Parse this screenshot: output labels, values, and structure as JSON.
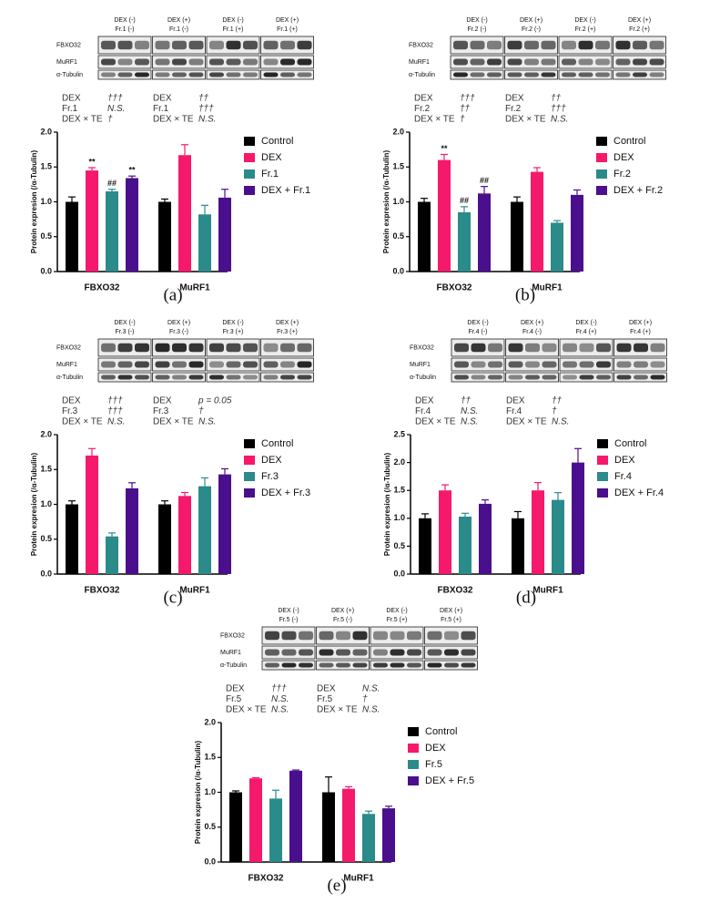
{
  "chart_data": [
    {
      "type": "bar",
      "panel_label": "(a)",
      "lanes": [
        [
          "DEX (-)",
          "Fr.1 (-)"
        ],
        [
          "DEX (+)",
          "Fr.1 (-)"
        ],
        [
          "DEX (-)",
          "Fr.1 (+)"
        ],
        [
          "DEX (+)",
          "Fr.1 (+)"
        ]
      ],
      "blot_rows": [
        "FBXO32",
        "MuRF1",
        "α-Tubulin"
      ],
      "stats": [
        [
          {
            "label": "DEX",
            "value": "†††"
          },
          {
            "label": "Fr.1",
            "value": "N.S."
          },
          {
            "label": "DEX × TE",
            "value": "†"
          }
        ],
        [
          {
            "label": "DEX",
            "value": "††"
          },
          {
            "label": "Fr.1",
            "value": "†††"
          },
          {
            "label": "DEX × TE",
            "value": "N.S."
          }
        ]
      ],
      "y_label": "Protein expresion (/α-Tubulin)",
      "categories": [
        "FBXO32",
        "MuRF1"
      ],
      "series": [
        {
          "name": "Control",
          "color": "#000000",
          "values": [
            1.0,
            1.0
          ],
          "errors": [
            0.07,
            0.04
          ],
          "annotations": [
            null,
            null
          ]
        },
        {
          "name": "DEX",
          "color": "#f5196b",
          "values": [
            1.45,
            1.67
          ],
          "errors": [
            0.04,
            0.15
          ],
          "annotations": [
            "**",
            null
          ]
        },
        {
          "name": "Fr.1",
          "color": "#2b8a8a",
          "values": [
            1.15,
            0.82
          ],
          "errors": [
            0.03,
            0.13
          ],
          "annotations": [
            "##",
            null
          ]
        },
        {
          "name": "DEX + Fr.1",
          "color": "#4a0f8c",
          "values": [
            1.34,
            1.06
          ],
          "errors": [
            0.03,
            0.12
          ],
          "annotations": [
            "**",
            null
          ]
        }
      ],
      "ylim": [
        0,
        2
      ],
      "yticks": [
        {
          "value": 0,
          "label": "0.0"
        },
        0.5,
        {
          "value": 1,
          "label": "1.0"
        },
        1.5,
        {
          "value": 2,
          "label": "2.0"
        }
      ]
    },
    {
      "type": "bar",
      "panel_label": "(b)",
      "lanes": [
        [
          "DEX (-)",
          "Fr.2 (-)"
        ],
        [
          "DEX (+)",
          "Fr.2 (-)"
        ],
        [
          "DEX (-)",
          "Fr.2 (+)"
        ],
        [
          "DEX (+)",
          "Fr.2 (+)"
        ]
      ],
      "blot_rows": [
        "FBXO32",
        "MuRF1",
        "α-Tubulin"
      ],
      "stats": [
        [
          {
            "label": "DEX",
            "value": "†††"
          },
          {
            "label": "Fr.2",
            "value": "††"
          },
          {
            "label": "DEX × TE",
            "value": "†"
          }
        ],
        [
          {
            "label": "DEX",
            "value": "††"
          },
          {
            "label": "Fr.2",
            "value": "†††"
          },
          {
            "label": "DEX × TE",
            "value": "N.S."
          }
        ]
      ],
      "y_label": "Protein expresion (/α-Tubulin)",
      "categories": [
        "FBXO32",
        "MuRF1"
      ],
      "series": [
        {
          "name": "Control",
          "color": "#000000",
          "values": [
            1.0,
            1.0
          ],
          "errors": [
            0.05,
            0.07
          ],
          "annotations": [
            null,
            null
          ]
        },
        {
          "name": "DEX",
          "color": "#f5196b",
          "values": [
            1.6,
            1.43
          ],
          "errors": [
            0.08,
            0.06
          ],
          "annotations": [
            "**",
            null
          ]
        },
        {
          "name": "Fr.2",
          "color": "#2b8a8a",
          "values": [
            0.85,
            0.7
          ],
          "errors": [
            0.08,
            0.03
          ],
          "annotations": [
            "##",
            null
          ]
        },
        {
          "name": "DEX + Fr.2",
          "color": "#4a0f8c",
          "values": [
            1.12,
            1.1
          ],
          "errors": [
            0.1,
            0.07
          ],
          "annotations": [
            "##",
            null
          ]
        }
      ],
      "ylim": [
        0,
        2
      ],
      "yticks": [
        {
          "value": 0,
          "label": "0.0"
        },
        0.5,
        {
          "value": 1,
          "label": "1.0"
        },
        1.5,
        {
          "value": 2,
          "label": "2.0"
        }
      ]
    },
    {
      "type": "bar",
      "panel_label": "(c)",
      "lanes": [
        [
          "DEX (-)",
          "Fr.3 (-)"
        ],
        [
          "DEX (+)",
          "Fr.3 (-)"
        ],
        [
          "DEX (-)",
          "Fr.3 (+)"
        ],
        [
          "DEX (+)",
          "Fr.3 (+)"
        ]
      ],
      "blot_rows": [
        "FBXO32",
        "MuRF1",
        "α-Tubulin"
      ],
      "stats": [
        [
          {
            "label": "DEX",
            "value": "†††"
          },
          {
            "label": "Fr.3",
            "value": "†††"
          },
          {
            "label": "DEX × TE",
            "value": "N.S."
          }
        ],
        [
          {
            "label": "DEX",
            "value": "p = 0.05"
          },
          {
            "label": "Fr.3",
            "value": "†"
          },
          {
            "label": "DEX × TE",
            "value": "N.S."
          }
        ]
      ],
      "y_label": "Protein expresion (/α-Tubulin)",
      "categories": [
        "FBXO32",
        "MuRF1"
      ],
      "series": [
        {
          "name": "Control",
          "color": "#000000",
          "values": [
            1.0,
            1.0
          ],
          "errors": [
            0.05,
            0.05
          ],
          "annotations": [
            null,
            null
          ]
        },
        {
          "name": "DEX",
          "color": "#f5196b",
          "values": [
            1.7,
            1.12
          ],
          "errors": [
            0.1,
            0.05
          ],
          "annotations": [
            null,
            null
          ]
        },
        {
          "name": "Fr.3",
          "color": "#2b8a8a",
          "values": [
            0.54,
            1.26
          ],
          "errors": [
            0.05,
            0.12
          ],
          "annotations": [
            null,
            null
          ]
        },
        {
          "name": "DEX + Fr.3",
          "color": "#4a0f8c",
          "values": [
            1.23,
            1.43
          ],
          "errors": [
            0.08,
            0.08
          ],
          "annotations": [
            null,
            null
          ]
        }
      ],
      "ylim": [
        0,
        2
      ],
      "yticks": [
        {
          "value": 0,
          "label": "0.0"
        },
        0.5,
        {
          "value": 1,
          "label": "1.0"
        },
        1.5,
        {
          "value": 2,
          "label": "2.0"
        }
      ]
    },
    {
      "type": "bar",
      "panel_label": "(d)",
      "lanes": [
        [
          "DEX (-)",
          "Fr.4 (-)"
        ],
        [
          "DEX (+)",
          "Fr.4 (-)"
        ],
        [
          "DEX (-)",
          "Fr.4 (+)"
        ],
        [
          "DEX (+)",
          "Fr.4 (+)"
        ]
      ],
      "blot_rows": [
        "FBXO32",
        "MuRF1",
        "α-Tubulin"
      ],
      "stats": [
        [
          {
            "label": "DEX",
            "value": "††"
          },
          {
            "label": "Fr.4",
            "value": "N.S."
          },
          {
            "label": "DEX × TE",
            "value": "N.S."
          }
        ],
        [
          {
            "label": "DEX",
            "value": "††"
          },
          {
            "label": "Fr.4",
            "value": "†"
          },
          {
            "label": "DEX × TE",
            "value": "N.S."
          }
        ]
      ],
      "y_label": "Protein expresion (/α-Tubulin)",
      "categories": [
        "FBXO32",
        "MuRF1"
      ],
      "series": [
        {
          "name": "Control",
          "color": "#000000",
          "values": [
            1.0,
            1.0
          ],
          "errors": [
            0.08,
            0.12
          ],
          "annotations": [
            null,
            null
          ]
        },
        {
          "name": "DEX",
          "color": "#f5196b",
          "values": [
            1.5,
            1.5
          ],
          "errors": [
            0.1,
            0.14
          ],
          "annotations": [
            null,
            null
          ]
        },
        {
          "name": "Fr.4",
          "color": "#2b8a8a",
          "values": [
            1.03,
            1.33
          ],
          "errors": [
            0.06,
            0.13
          ],
          "annotations": [
            null,
            null
          ]
        },
        {
          "name": "DEX + Fr.4",
          "color": "#4a0f8c",
          "values": [
            1.26,
            2.0
          ],
          "errors": [
            0.07,
            0.25
          ],
          "annotations": [
            null,
            null
          ]
        }
      ],
      "ylim": [
        0,
        2.5
      ],
      "yticks": [
        {
          "value": 0,
          "label": "0.0"
        },
        0.5,
        {
          "value": 1,
          "label": "1.0"
        },
        1.5,
        {
          "value": 2,
          "label": "2.0"
        },
        2.5
      ]
    },
    {
      "type": "bar",
      "panel_label": "(e)",
      "lanes": [
        [
          "DEX (-)",
          "Fr.5 (-)"
        ],
        [
          "DEX (+)",
          "Fr.5 (-)"
        ],
        [
          "DEX (-)",
          "Fr.5 (+)"
        ],
        [
          "DEX (+)",
          "Fr.5 (+)"
        ]
      ],
      "blot_rows": [
        "FBXO32",
        "MuRF1",
        "α-Tubulin"
      ],
      "stats": [
        [
          {
            "label": "DEX",
            "value": "†††"
          },
          {
            "label": "Fr.5",
            "value": "N.S."
          },
          {
            "label": "DEX × TE",
            "value": "N.S."
          }
        ],
        [
          {
            "label": "DEX",
            "value": "N.S."
          },
          {
            "label": "Fr.5",
            "value": "†"
          },
          {
            "label": "DEX × TE",
            "value": "N.S."
          }
        ]
      ],
      "y_label": "Protein expresion (/α-Tubulin)",
      "categories": [
        "FBXO32",
        "MuRF1"
      ],
      "series": [
        {
          "name": "Control",
          "color": "#000000",
          "values": [
            1.0,
            1.0
          ],
          "errors": [
            0.02,
            0.22
          ],
          "annotations": [
            null,
            null
          ]
        },
        {
          "name": "DEX",
          "color": "#f5196b",
          "values": [
            1.2,
            1.05
          ],
          "errors": [
            0.01,
            0.03
          ],
          "annotations": [
            null,
            null
          ]
        },
        {
          "name": "Fr.5",
          "color": "#2b8a8a",
          "values": [
            0.91,
            0.69
          ],
          "errors": [
            0.12,
            0.04
          ],
          "annotations": [
            null,
            null
          ]
        },
        {
          "name": "DEX + Fr.5",
          "color": "#4a0f8c",
          "values": [
            1.31,
            0.77
          ],
          "errors": [
            0.01,
            0.03
          ],
          "annotations": [
            null,
            null
          ]
        }
      ],
      "ylim": [
        0,
        2
      ],
      "yticks": [
        {
          "value": 0,
          "label": "0.0"
        },
        0.5,
        {
          "value": 1,
          "label": "1.0"
        },
        1.5,
        {
          "value": 2,
          "label": "2.0"
        }
      ]
    }
  ]
}
